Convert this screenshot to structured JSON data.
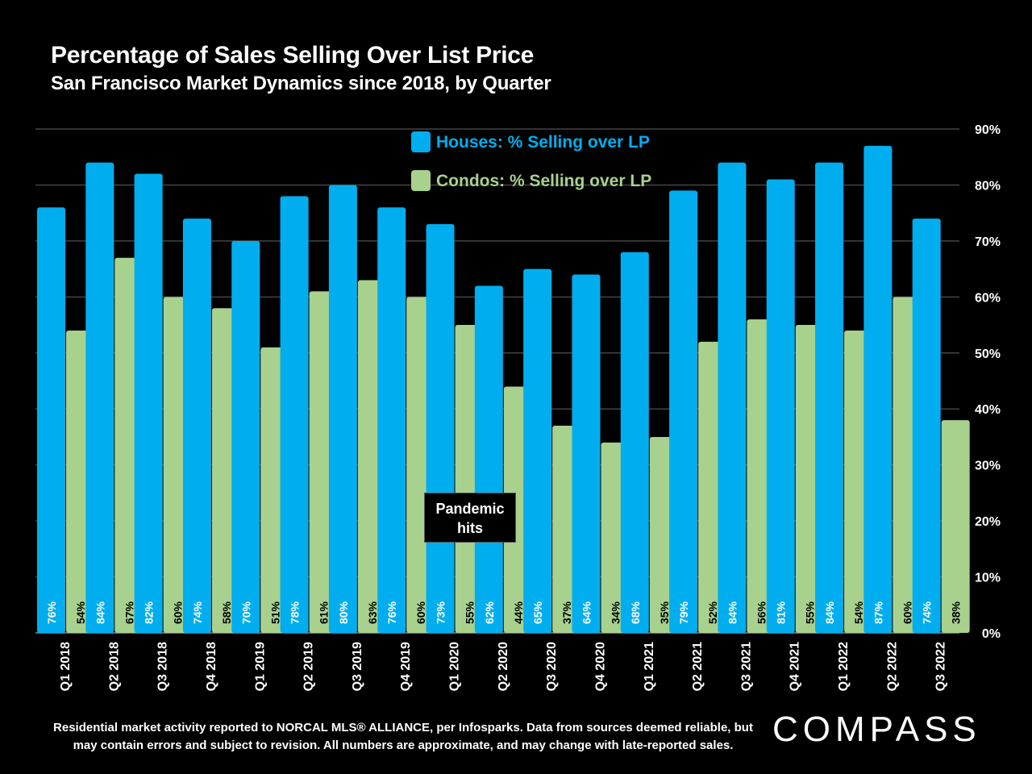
{
  "title": "Percentage of Sales Selling Over List Price",
  "subtitle": "San Francisco Market Dynamics since 2018, by Quarter",
  "annotation": "Pandemic hits",
  "footnote_line1": "Residential market activity reported to NORCAL MLS® ALLIANCE, per Infosparks. Data from sources deemed reliable, but",
  "footnote_line2": "may contain errors and subject to revision. All numbers are approximate, and may change with late-reported sales.",
  "logo_text": "COMPASS",
  "colors": {
    "houses": "#00AEEF",
    "condos": "#A9D18E",
    "grid": "#444444",
    "background": "#000000"
  },
  "chart_data": {
    "type": "bar",
    "title": "Percentage of Sales Selling Over List Price",
    "subtitle": "San Francisco Market Dynamics since 2018, by Quarter",
    "categories": [
      "Q1 2018",
      "Q2 2018",
      "Q3 2018",
      "Q4 2018",
      "Q1 2019",
      "Q2 2019",
      "Q3 2019",
      "Q4 2019",
      "Q1 2020",
      "Q2 2020",
      "Q3 2020",
      "Q4 2020",
      "Q1 2021",
      "Q2 2021",
      "Q3 2021",
      "Q4 2021",
      "Q1 2022",
      "Q2 2022",
      "Q3 2022"
    ],
    "series": [
      {
        "name": "Houses: % Selling over LP",
        "color": "#00AEEF",
        "values": [
          76,
          84,
          82,
          74,
          70,
          78,
          80,
          76,
          73,
          62,
          65,
          64,
          68,
          79,
          84,
          81,
          84,
          87,
          74
        ]
      },
      {
        "name": "Condos: % Selling over LP",
        "color": "#A9D18E",
        "values": [
          54,
          67,
          60,
          58,
          51,
          61,
          63,
          60,
          55,
          44,
          37,
          34,
          35,
          52,
          56,
          55,
          54,
          60,
          38
        ]
      }
    ],
    "ylim": [
      0,
      90
    ],
    "yticks": [
      0,
      10,
      20,
      30,
      40,
      50,
      60,
      70,
      80,
      90
    ],
    "ytick_suffix": "%",
    "grid": true,
    "legend_position": "top-center"
  }
}
